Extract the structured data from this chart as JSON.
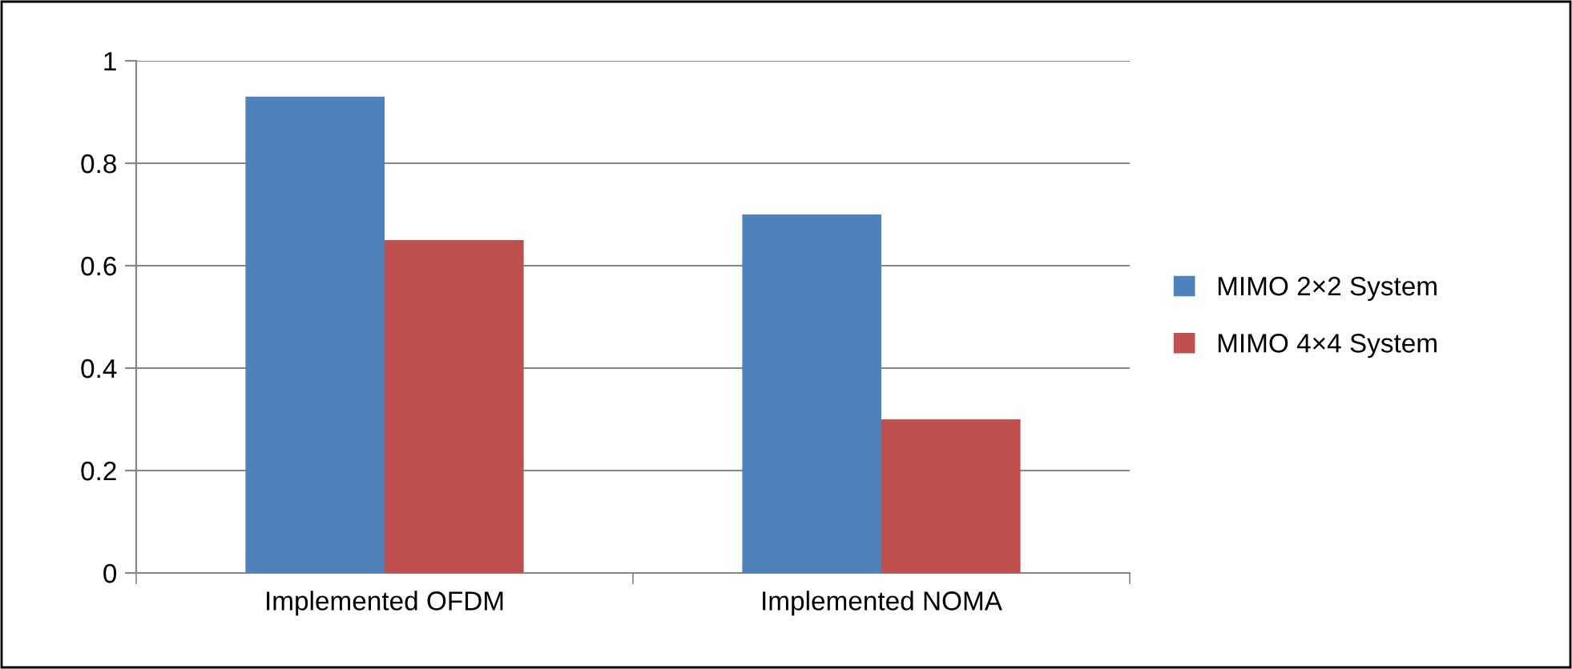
{
  "chart_data": {
    "type": "bar",
    "categories": [
      "Implemented OFDM",
      "Implemented NOMA"
    ],
    "series": [
      {
        "name": "MIMO 2×2 System",
        "color": "#4f81bd",
        "values": [
          0.93,
          0.7
        ]
      },
      {
        "name": "MIMO 4×4 System",
        "color": "#c0504d",
        "values": [
          0.65,
          0.3
        ]
      }
    ],
    "ylim": [
      0,
      1
    ],
    "yticks": [
      0,
      0.2,
      0.4,
      0.6,
      0.8,
      1
    ],
    "grid": "y",
    "legend": "right"
  }
}
